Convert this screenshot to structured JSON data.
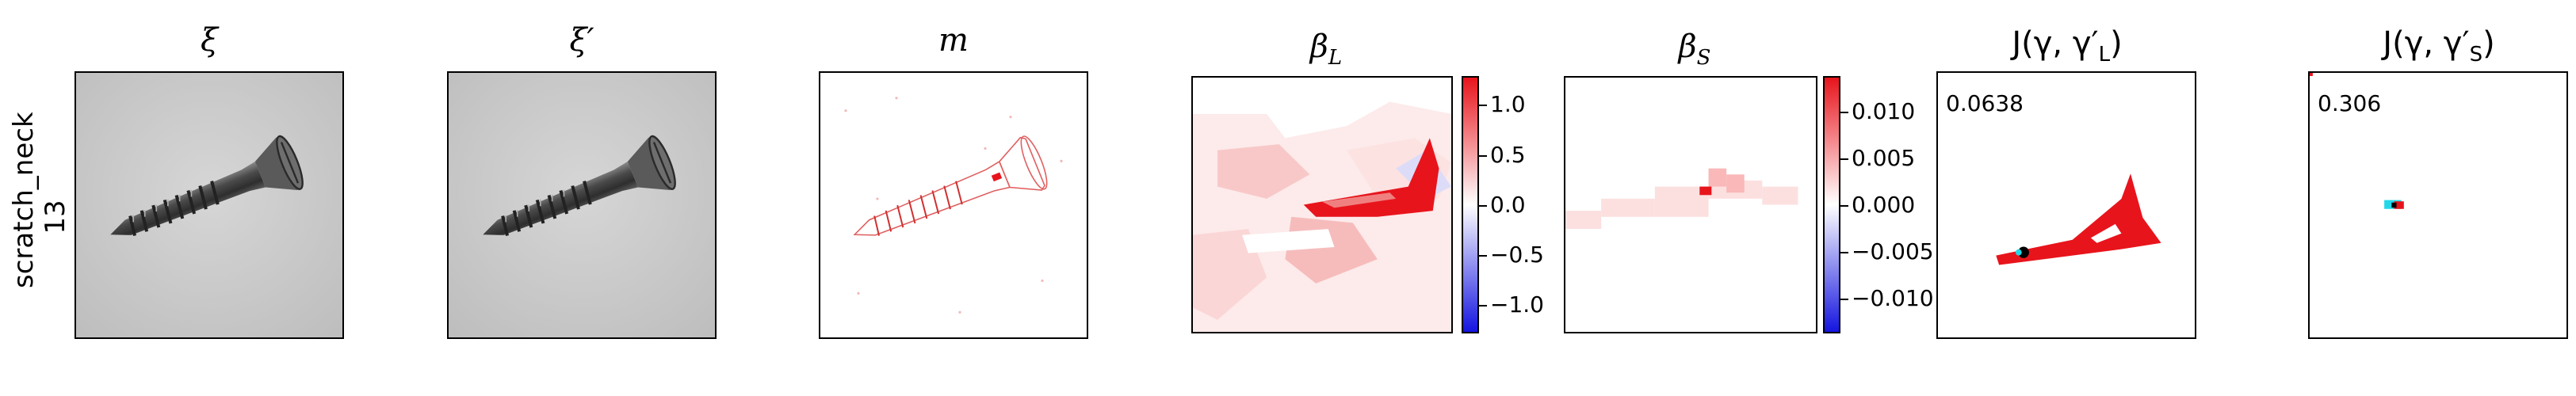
{
  "row": {
    "label_line1": "scratch_neck",
    "label_line2": "13"
  },
  "panels": [
    {
      "title": "ξ"
    },
    {
      "title": "ξ′"
    },
    {
      "title": "m"
    },
    {
      "title": "β_L",
      "title_main": "β",
      "title_sub": "L"
    },
    {
      "title": "β_S",
      "title_main": "β",
      "title_sub": "S"
    },
    {
      "title": "J(γ, γ′_L)",
      "title_text": "J(γ, γ′",
      "title_sub": "L",
      "title_close": ")"
    },
    {
      "title": "J(γ, γ′_S)",
      "title_text": "J(γ, γ′",
      "title_sub": "S",
      "title_close": ")"
    }
  ],
  "colorbar_L": {
    "ticks": [
      "1.0",
      "0.5",
      "0.0",
      "−0.5",
      "−1.0"
    ],
    "range": [
      -1.25,
      1.25
    ]
  },
  "colorbar_S": {
    "ticks": [
      "0.010",
      "0.005",
      "0.000",
      "−0.005",
      "−0.010"
    ],
    "range": [
      -0.0135,
      0.0135
    ]
  },
  "scores": {
    "L": "0.0638",
    "S": "0.306"
  },
  "colors": {
    "red": "#e8141c",
    "blue": "#1414e0",
    "cyan": "#22d8e8",
    "gray_bg": "#c8c8c8"
  }
}
